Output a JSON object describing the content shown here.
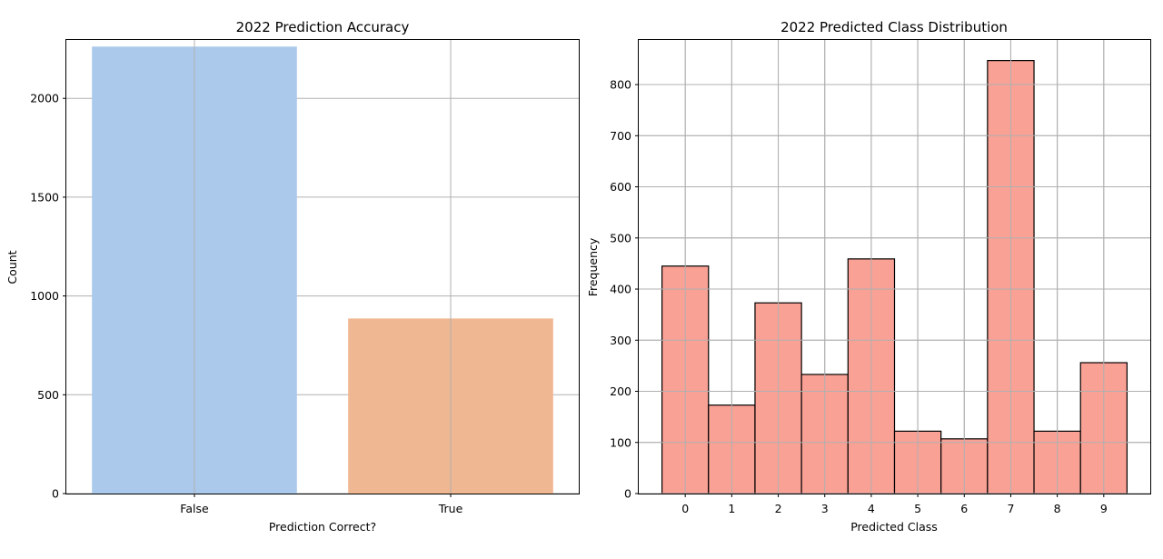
{
  "chart_data": [
    {
      "type": "bar",
      "title": "2022 Prediction Accuracy",
      "xlabel": "Prediction Correct?",
      "ylabel": "Count",
      "categories": [
        "False",
        "True"
      ],
      "values": [
        2262,
        886
      ],
      "colors": [
        "#abc9ea",
        "#efb792"
      ],
      "ylim": [
        0,
        2300
      ],
      "yticks": [
        0,
        500,
        1000,
        1500,
        2000
      ],
      "grid": true,
      "legend": "none"
    },
    {
      "type": "bar",
      "title": "2022 Predicted Class Distribution",
      "xlabel": "Predicted Class",
      "ylabel": "Frequency",
      "categories": [
        "0",
        "1",
        "2",
        "3",
        "4",
        "5",
        "6",
        "7",
        "8",
        "9"
      ],
      "values": [
        445,
        173,
        373,
        233,
        459,
        122,
        107,
        847,
        122,
        256
      ],
      "color": "#f9a195",
      "edgecolor": "#000000",
      "ylim": [
        0,
        889
      ],
      "yticks": [
        0,
        100,
        200,
        300,
        400,
        500,
        600,
        700,
        800
      ],
      "grid": true,
      "legend": "none"
    }
  ]
}
